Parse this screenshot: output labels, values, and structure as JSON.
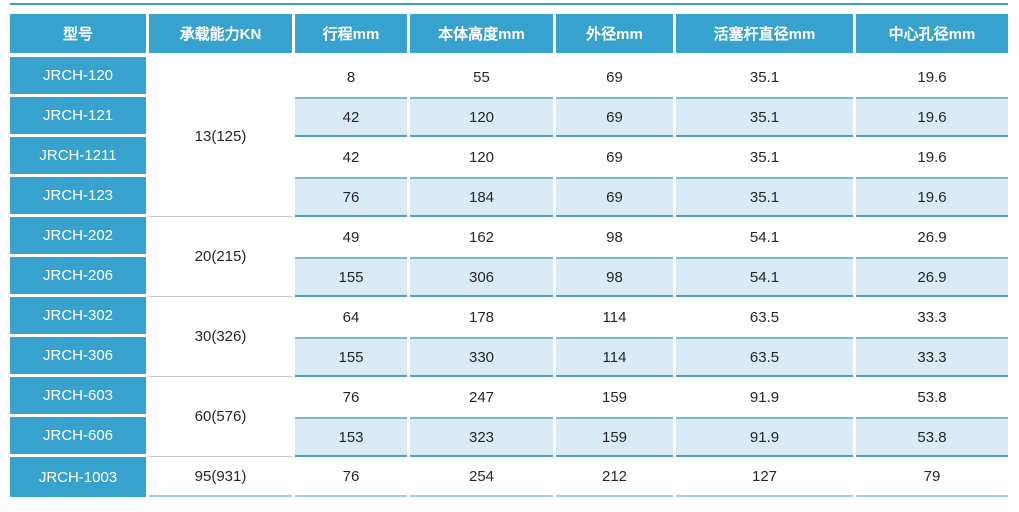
{
  "table": {
    "columns": [
      {
        "label": "型号"
      },
      {
        "label": "承载能力KN"
      },
      {
        "label": "行程mm"
      },
      {
        "label": "本体高度mm"
      },
      {
        "label": "外径mm"
      },
      {
        "label": "活塞杆直径mm"
      },
      {
        "label": "中心孔径mm"
      }
    ],
    "groups": [
      {
        "capacity": "13(125)",
        "span": 4
      },
      {
        "capacity": "20(215)",
        "span": 2
      },
      {
        "capacity": "30(326)",
        "span": 2
      },
      {
        "capacity": "60(576)",
        "span": 2
      },
      {
        "capacity": "95(931)",
        "span": 1
      }
    ],
    "rows": [
      {
        "model": "JRCH-120",
        "values": [
          "8",
          "55",
          "69",
          "35.1",
          "19.6"
        ]
      },
      {
        "model": "JRCH-121",
        "values": [
          "42",
          "120",
          "69",
          "35.1",
          "19.6"
        ]
      },
      {
        "model": "JRCH-1211",
        "values": [
          "42",
          "120",
          "69",
          "35.1",
          "19.6"
        ]
      },
      {
        "model": "JRCH-123",
        "values": [
          "76",
          "184",
          "69",
          "35.1",
          "19.6"
        ]
      },
      {
        "model": "JRCH-202",
        "values": [
          "49",
          "162",
          "98",
          "54.1",
          "26.9"
        ]
      },
      {
        "model": "JRCH-206",
        "values": [
          "155",
          "306",
          "98",
          "54.1",
          "26.9"
        ]
      },
      {
        "model": "JRCH-302",
        "values": [
          "64",
          "178",
          "114",
          "63.5",
          "33.3"
        ]
      },
      {
        "model": "JRCH-306",
        "values": [
          "155",
          "330",
          "114",
          "63.5",
          "33.3"
        ]
      },
      {
        "model": "JRCH-603",
        "values": [
          "76",
          "247",
          "159",
          "91.9",
          "53.8"
        ]
      },
      {
        "model": "JRCH-606",
        "values": [
          "153",
          "323",
          "159",
          "91.9",
          "53.8"
        ]
      },
      {
        "model": "JRCH-1003",
        "values": [
          "76",
          "254",
          "212",
          "127",
          "79"
        ]
      }
    ]
  },
  "colors": {
    "header_blue": "#38a2ce",
    "stripe_background": "#d9ecf6",
    "stripe_border_top": "#7fb6d0",
    "stripe_border_bottom": "#4f9fc0",
    "group_divider_gray": "#cbcbcb",
    "bottom_border": "#9ecfe3",
    "header_text": "#ffffff",
    "body_text": "#262626"
  }
}
